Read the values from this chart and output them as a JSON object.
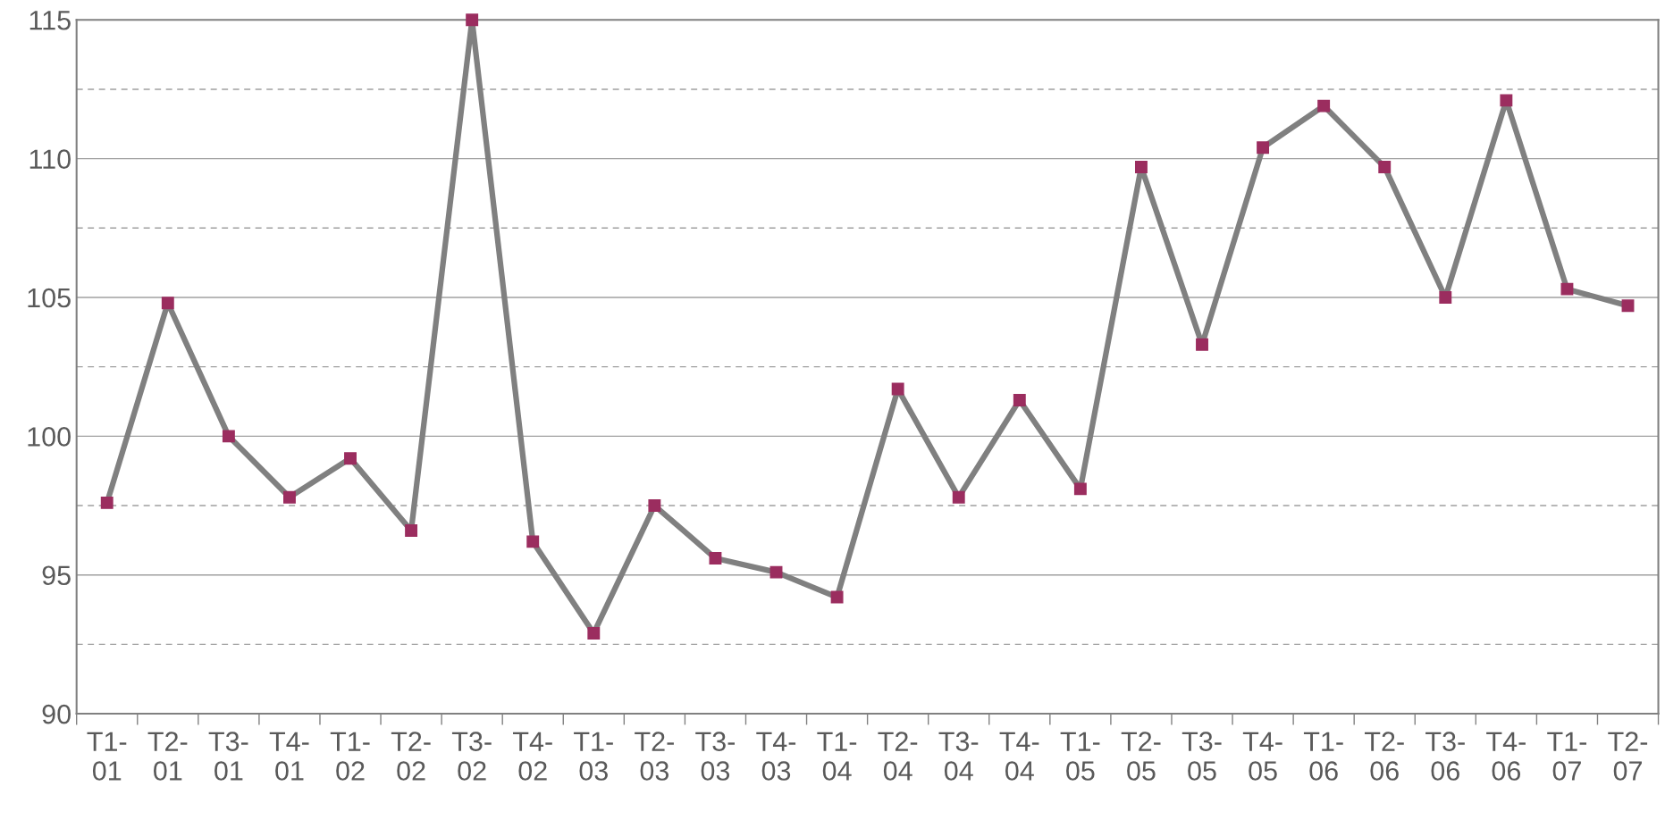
{
  "chart_data": {
    "type": "line",
    "categories": [
      "T1-\n01",
      "T2-\n01",
      "T3-\n01",
      "T4-\n01",
      "T1-\n02",
      "T2-\n02",
      "T3-\n02",
      "T4-\n02",
      "T1-\n03",
      "T2-\n03",
      "T3-\n03",
      "T4-\n03",
      "T1-\n04",
      "T2-\n04",
      "T3-\n04",
      "T4-\n04",
      "T1-\n05",
      "T2-\n05",
      "T3-\n05",
      "T4-\n05",
      "T1-\n06",
      "T2-\n06",
      "T3-\n06",
      "T4-\n06",
      "T1-\n07",
      "T2-\n07"
    ],
    "series": [
      {
        "color": "#808080",
        "values": [
          97.6,
          104.8,
          100.0,
          97.8,
          99.2,
          96.6,
          115.0,
          96.2,
          92.9,
          97.5,
          95.6,
          95.1,
          94.2,
          101.7,
          97.8,
          101.3,
          98.1,
          109.7,
          103.3,
          110.4,
          111.9,
          109.7,
          105.0,
          112.1,
          105.3,
          104.7
        ]
      }
    ],
    "ylim": [
      90,
      115
    ],
    "yticks": [
      90,
      {
        "value": 92.5,
        "label": null
      },
      95,
      {
        "value": 97.5,
        "label": null
      },
      100,
      {
        "value": 102.5,
        "label": null
      },
      105,
      {
        "value": 107.5,
        "label": null
      },
      110,
      {
        "value": 112.5,
        "label": null
      },
      115
    ],
    "grid": "y",
    "marker": "square",
    "line_style": "solid",
    "legend": false
  }
}
